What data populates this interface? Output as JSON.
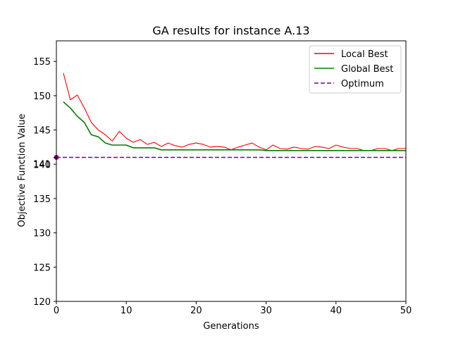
{
  "chart_data": {
    "type": "line",
    "title": "GA results for instance A.13",
    "xlabel": "Generations",
    "ylabel": "Objective Function Value",
    "xlim": [
      0,
      50
    ],
    "ylim": [
      120,
      158
    ],
    "xticks": [
      0,
      10,
      20,
      30,
      40,
      50
    ],
    "yticks": [
      120,
      125,
      130,
      135,
      140,
      145,
      150,
      155
    ],
    "extra_ytick": {
      "value": 141,
      "label": "141"
    },
    "grid": false,
    "legend_position": "top-right",
    "series": [
      {
        "name": "Local Best",
        "color": "#ff0000",
        "style": "solid",
        "x": [
          1,
          2,
          3,
          4,
          5,
          6,
          7,
          8,
          9,
          10,
          11,
          12,
          13,
          14,
          15,
          16,
          17,
          18,
          19,
          20,
          21,
          22,
          23,
          24,
          25,
          26,
          27,
          28,
          29,
          30,
          31,
          32,
          33,
          34,
          35,
          36,
          37,
          38,
          39,
          40,
          41,
          42,
          43,
          44,
          45,
          46,
          47,
          48,
          49,
          50
        ],
        "values": [
          153.3,
          149.4,
          150.1,
          148.2,
          146.1,
          145.0,
          144.3,
          143.4,
          144.8,
          143.8,
          143.2,
          143.6,
          142.9,
          143.2,
          142.6,
          143.1,
          142.7,
          142.5,
          142.9,
          143.1,
          142.9,
          142.5,
          142.6,
          142.5,
          142.1,
          142.5,
          142.8,
          143.1,
          142.5,
          142.1,
          142.8,
          142.3,
          142.2,
          142.5,
          142.3,
          142.2,
          142.6,
          142.5,
          142.3,
          142.8,
          142.5,
          142.3,
          142.3,
          142.0,
          142.0,
          142.3,
          142.3,
          142.0,
          142.3,
          142.3
        ]
      },
      {
        "name": "Global Best",
        "color": "#008000",
        "style": "solid",
        "x": [
          1,
          2,
          3,
          4,
          5,
          6,
          7,
          8,
          9,
          10,
          11,
          12,
          13,
          14,
          15,
          16,
          17,
          18,
          19,
          20,
          21,
          22,
          23,
          24,
          25,
          26,
          27,
          28,
          29,
          30,
          31,
          32,
          33,
          34,
          35,
          36,
          37,
          38,
          39,
          40,
          41,
          42,
          43,
          44,
          45,
          46,
          47,
          48,
          49,
          50
        ],
        "values": [
          149.1,
          148.2,
          147.0,
          146.1,
          144.3,
          144.0,
          143.1,
          142.8,
          142.8,
          142.8,
          142.4,
          142.4,
          142.4,
          142.4,
          142.1,
          142.1,
          142.1,
          142.1,
          142.1,
          142.1,
          142.1,
          142.1,
          142.1,
          142.1,
          142.1,
          142.1,
          142.1,
          142.1,
          142.1,
          142.0,
          142.0,
          142.0,
          142.0,
          142.0,
          142.0,
          142.0,
          142.0,
          142.0,
          142.0,
          142.0,
          142.0,
          142.0,
          142.0,
          142.0,
          142.0,
          142.0,
          142.0,
          142.0,
          142.0,
          142.0
        ]
      },
      {
        "name": "Optimum",
        "color": "#800080",
        "style": "dashed",
        "x": [
          0,
          50
        ],
        "values": [
          141,
          141
        ],
        "marker_at_x0": true
      }
    ]
  }
}
